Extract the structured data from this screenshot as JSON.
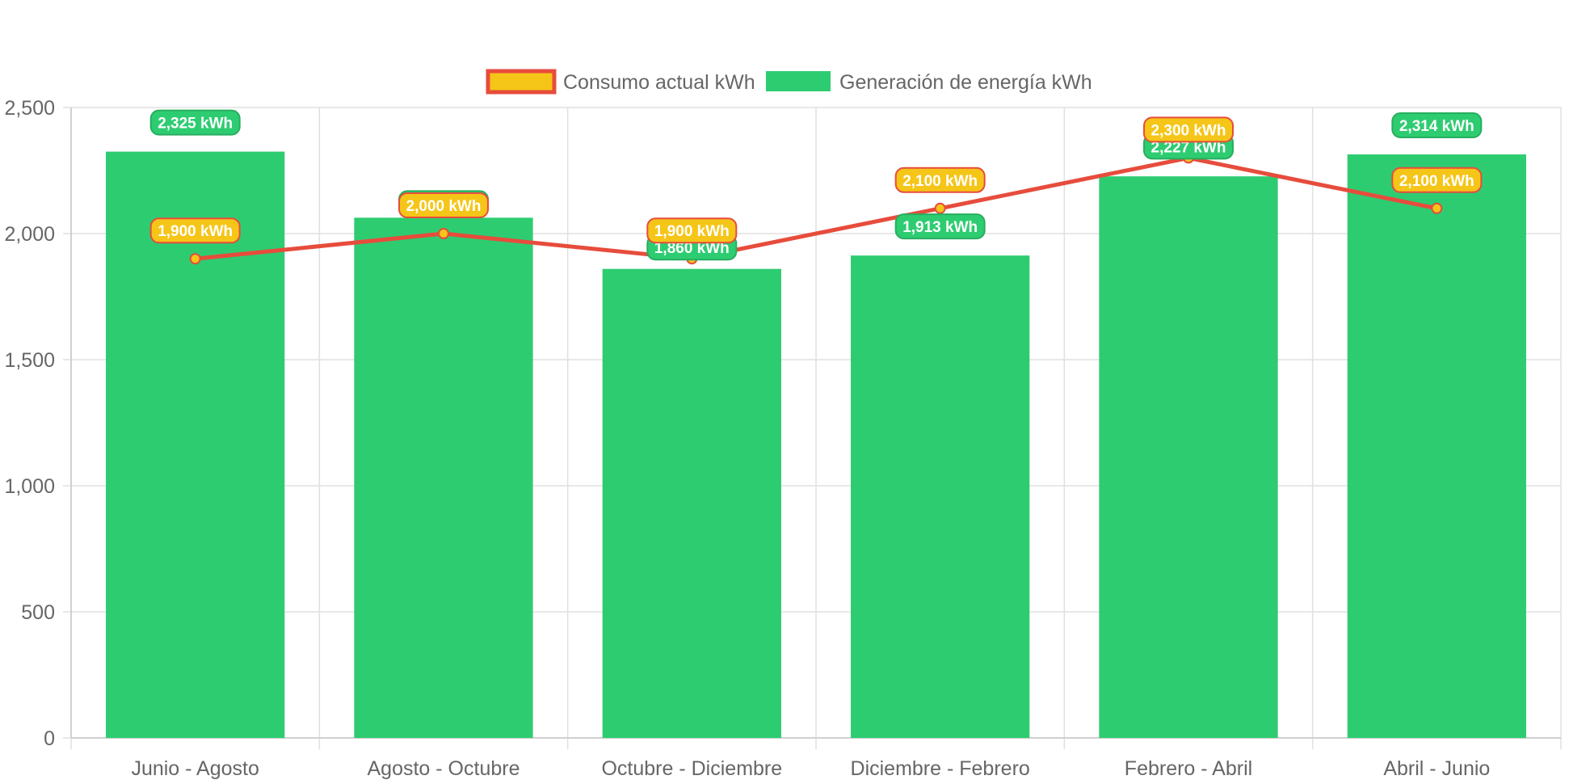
{
  "chart_data": {
    "type": "bar",
    "categories": [
      "Junio - Agosto",
      "Agosto - Octubre",
      "Octubre - Diciembre",
      "Diciembre - Febrero",
      "Febrero - Abril",
      "Abril - Junio"
    ],
    "ylim": [
      0,
      2500
    ],
    "yticks": [
      0,
      500,
      1000,
      1500,
      2000,
      2500
    ],
    "ytick_labels": [
      "0",
      "500",
      "1,000",
      "1,500",
      "2,000",
      "2,500"
    ],
    "grid": true,
    "legend_position": "top-center",
    "series": [
      {
        "name": "Consumo actual kWh",
        "type": "line",
        "values": [
          1900,
          2000,
          1900,
          2100,
          2300,
          2100
        ],
        "labels": [
          "1,900 kWh",
          "2,000 kWh",
          "1,900 kWh",
          "2,100 kWh",
          "2,300 kWh",
          "2,100 kWh"
        ],
        "color": "#e74c3c",
        "fill_color": "#f5c518"
      },
      {
        "name": "Generación de energía kWh",
        "type": "bar",
        "values": [
          2325,
          2063,
          1860,
          1913,
          2227,
          2314
        ],
        "labels": [
          "2,325 kWh",
          "2,063 kWh",
          "1,860 kWh",
          "1,913 kWh",
          "2,227 kWh",
          "2,314 kWh"
        ],
        "color": "#2ecc71"
      }
    ]
  }
}
